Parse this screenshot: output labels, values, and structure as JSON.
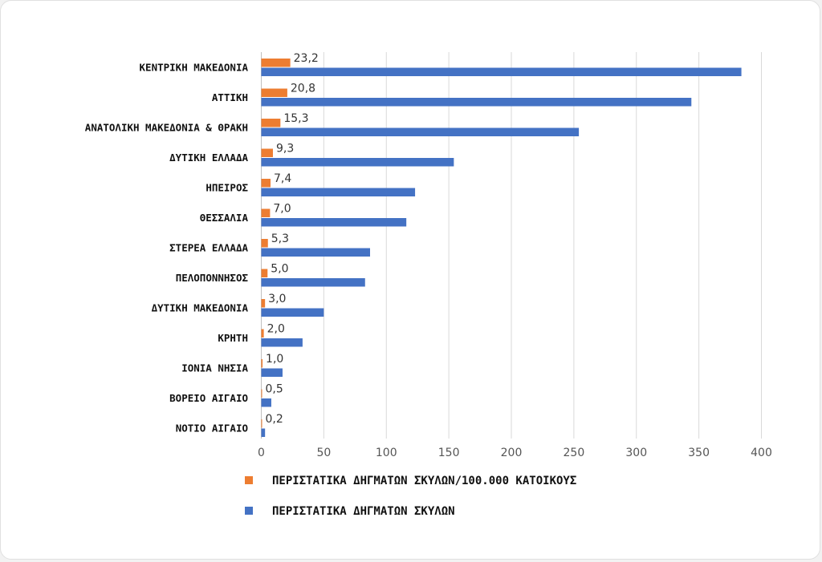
{
  "chart_data": {
    "type": "bar",
    "orientation": "horizontal",
    "categories": [
      "ΚΕΝΤΡΙΚΗ ΜΑΚΕΔΟΝΙΑ",
      "ΑΤΤΙΚΗ",
      "ΑΝΑΤΟΛΙΚΗ ΜΑΚΕΔΟΝΙΑ & ΘΡΑΚΗ",
      "ΔΥΤΙΚΗ ΕΛΛΑΔΑ",
      "ΗΠΕΙΡΟΣ",
      "ΘΕΣΣΑΛΙΑ",
      "ΣΤΕΡΕΑ ΕΛΛΑΔΑ",
      "ΠΕΛΟΠΟΝΝΗΣΟΣ",
      "ΔΥΤΙΚΗ ΜΑΚΕΔΟΝΙΑ",
      "ΚΡΗΤΗ",
      "ΙΟΝΙΑ ΝΗΣΙΑ",
      "ΒΟΡΕΙΟ ΑΙΓΑΙΟ",
      "ΝΟΤΙΟ ΑΙΓΑΙΟ"
    ],
    "series": [
      {
        "name": "ΠΕΡΙΣΤΑΤΙΚΑ ΔΗΓΜΑΤΩΝ ΣΚΥΛΩΝ/100.000 ΚΑΤΟΙΚΟΥΣ",
        "color": "#ed7d31",
        "values": [
          23.2,
          20.8,
          15.3,
          9.3,
          7.4,
          7.0,
          5.3,
          5.0,
          3.0,
          2.0,
          1.0,
          0.5,
          0.2
        ],
        "labels": [
          "23,2",
          "20,8",
          "15,3",
          "9,3",
          "7,4",
          "7,0",
          "5,3",
          "5,0",
          "3,0",
          "2,0",
          "1,0",
          "0,5",
          "0,2"
        ]
      },
      {
        "name": "ΠΕΡΙΣΤΑΤΙΚΑ ΔΗΓΜΑΤΩΝ ΣΚΥΛΩΝ",
        "color": "#4472c4",
        "values": [
          384,
          344,
          254,
          154,
          123,
          116,
          87,
          83,
          50,
          33,
          17,
          8,
          3
        ]
      }
    ],
    "xlim": [
      0,
      400
    ],
    "xticks": [
      0,
      50,
      100,
      150,
      200,
      250,
      300,
      350,
      400
    ],
    "grid": "vertical",
    "legend_position": "bottom",
    "title": "",
    "xlabel": "",
    "ylabel": ""
  }
}
